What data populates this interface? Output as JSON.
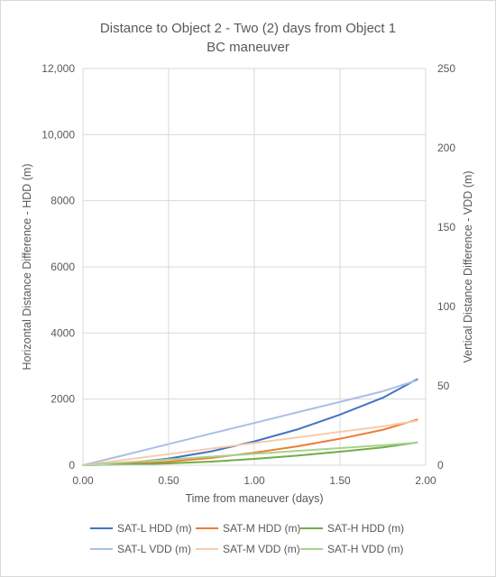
{
  "chart_data": {
    "type": "line",
    "title": "Distance to Object 2 - Two (2) days from Object 1",
    "subtitle": "BC maneuver",
    "xlabel": "Time from maneuver (days)",
    "ylabel": "Horizontal Distance Difference - HDD (m)",
    "y2label": "Vertical Distance Difference - VDD (m)",
    "xlim": [
      0,
      2
    ],
    "ylim": [
      0,
      12000
    ],
    "y2lim": [
      0,
      250
    ],
    "x_ticks": [
      "0.00",
      "0.50",
      "1.00",
      "1.50",
      "2.00"
    ],
    "y_ticks": [
      "0",
      "2000",
      "4000",
      "6000",
      "8000",
      "10,000",
      "12,000"
    ],
    "y2_ticks": [
      "0",
      "50",
      "100",
      "150",
      "200",
      "250"
    ],
    "grid": true,
    "legend_position": "bottom",
    "x": [
      0,
      0.25,
      0.5,
      0.75,
      1.0,
      1.25,
      1.5,
      1.75,
      1.95
    ],
    "series": [
      {
        "name": "SAT-L HDD (m)",
        "axis": "left",
        "color": "#4472c4",
        "values": [
          0,
          60,
          200,
          420,
          720,
          1080,
          1530,
          2040,
          2600
        ]
      },
      {
        "name": "SAT-M HDD (m)",
        "axis": "left",
        "color": "#ed7d31",
        "values": [
          0,
          30,
          105,
          220,
          380,
          570,
          800,
          1070,
          1380
        ]
      },
      {
        "name": "SAT-H HDD (m)",
        "axis": "left",
        "color": "#70ad47",
        "values": [
          0,
          15,
          55,
          110,
          190,
          290,
          410,
          540,
          690
        ]
      },
      {
        "name": "SAT-L VDD (m)",
        "axis": "right",
        "color": "#a9c0e4",
        "values": [
          0,
          6.6,
          13.3,
          20.0,
          26.6,
          33.3,
          39.9,
          46.6,
          53.5
        ]
      },
      {
        "name": "SAT-M VDD (m)",
        "axis": "right",
        "color": "#f8cbad",
        "values": [
          0,
          3.5,
          7.0,
          10.5,
          14.0,
          17.5,
          21.0,
          24.5,
          28.0
        ]
      },
      {
        "name": "SAT-H VDD (m)",
        "axis": "right",
        "color": "#a9d18e",
        "values": [
          0,
          1.8,
          3.6,
          5.4,
          7.2,
          9.0,
          10.8,
          12.6,
          14.2
        ]
      }
    ]
  }
}
